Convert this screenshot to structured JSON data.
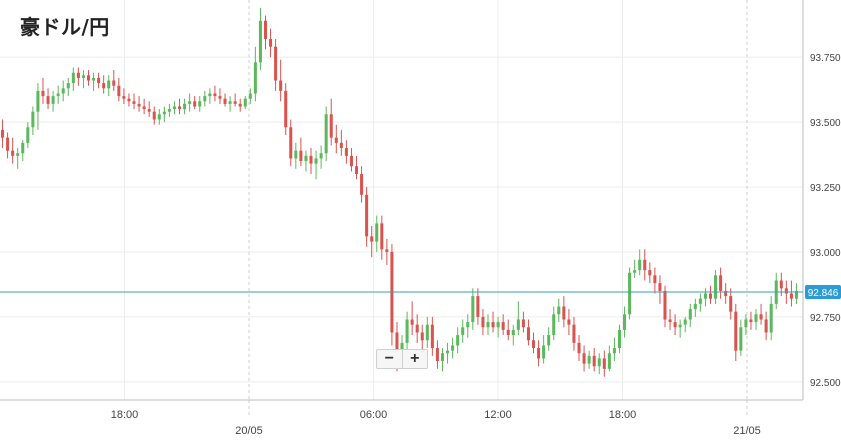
{
  "title": "豪ドル/円",
  "zoom": {
    "out_label": "−",
    "in_label": "+"
  },
  "chart_data": {
    "type": "candlestick",
    "title": "豪ドル/円",
    "ylim": [
      92.43,
      93.97
    ],
    "y_ticks": [
      "93.750",
      "93.500",
      "93.250",
      "93.000",
      "92.750",
      "92.500"
    ],
    "x_ticks": [
      {
        "pos": 6,
        "label": "18:00"
      },
      {
        "pos": 12,
        "label": "20/05"
      },
      {
        "pos": 18,
        "label": "06:00"
      },
      {
        "pos": 24,
        "label": "12:00"
      },
      {
        "pos": 30,
        "label": "18:00"
      },
      {
        "pos": 36,
        "label": "21/05"
      }
    ],
    "x_range": [
      0,
      38.7
    ],
    "current_price": {
      "value": 92.846,
      "label": "92.846"
    },
    "up_color": "#5cb85c",
    "down_color": "#d9534f",
    "grid": true,
    "candles": [
      [
        93.47,
        93.51,
        93.4,
        93.44
      ],
      [
        93.44,
        93.46,
        93.36,
        93.39
      ],
      [
        93.39,
        93.44,
        93.34,
        93.37
      ],
      [
        93.37,
        93.4,
        93.32,
        93.38
      ],
      [
        93.38,
        93.43,
        93.35,
        93.42
      ],
      [
        93.42,
        93.5,
        93.4,
        93.48
      ],
      [
        93.48,
        93.56,
        93.45,
        93.54
      ],
      [
        93.54,
        93.65,
        93.47,
        93.62
      ],
      [
        93.62,
        93.67,
        93.57,
        93.6
      ],
      [
        93.6,
        93.63,
        93.55,
        93.57
      ],
      [
        93.57,
        93.62,
        93.54,
        93.6
      ],
      [
        93.6,
        93.64,
        93.57,
        93.61
      ],
      [
        93.61,
        93.66,
        93.58,
        93.63
      ],
      [
        93.63,
        93.67,
        93.6,
        93.65
      ],
      [
        93.65,
        93.71,
        93.62,
        93.69
      ],
      [
        93.69,
        93.71,
        93.64,
        93.67
      ],
      [
        93.67,
        93.7,
        93.63,
        93.68
      ],
      [
        93.68,
        93.7,
        93.64,
        93.66
      ],
      [
        93.66,
        93.69,
        93.62,
        93.67
      ],
      [
        93.67,
        93.69,
        93.63,
        93.65
      ],
      [
        93.65,
        93.68,
        93.61,
        93.63
      ],
      [
        93.63,
        93.68,
        93.6,
        93.66
      ],
      [
        93.66,
        93.7,
        93.62,
        93.64
      ],
      [
        93.64,
        93.67,
        93.58,
        93.6
      ],
      [
        93.6,
        93.63,
        93.57,
        93.59
      ],
      [
        93.59,
        93.61,
        93.56,
        93.58
      ],
      [
        93.58,
        93.61,
        93.55,
        93.57
      ],
      [
        93.57,
        93.6,
        93.54,
        93.56
      ],
      [
        93.56,
        93.59,
        93.53,
        93.55
      ],
      [
        93.55,
        93.58,
        93.52,
        93.54
      ],
      [
        93.54,
        93.56,
        93.49,
        93.51
      ],
      [
        93.51,
        93.55,
        93.49,
        93.53
      ],
      [
        93.53,
        93.56,
        93.5,
        93.54
      ],
      [
        93.54,
        93.57,
        93.52,
        93.55
      ],
      [
        93.55,
        93.58,
        93.53,
        93.56
      ],
      [
        93.56,
        93.59,
        93.53,
        93.55
      ],
      [
        93.55,
        93.59,
        93.53,
        93.57
      ],
      [
        93.57,
        93.61,
        93.54,
        93.58
      ],
      [
        93.58,
        93.6,
        93.55,
        93.56
      ],
      [
        93.56,
        93.6,
        93.54,
        93.58
      ],
      [
        93.58,
        93.62,
        93.56,
        93.6
      ],
      [
        93.6,
        93.63,
        93.57,
        93.61
      ],
      [
        93.61,
        93.64,
        93.58,
        93.6
      ],
      [
        93.6,
        93.63,
        93.57,
        93.59
      ],
      [
        93.59,
        93.61,
        93.56,
        93.57
      ],
      [
        93.57,
        93.6,
        93.54,
        93.58
      ],
      [
        93.58,
        93.61,
        93.56,
        93.57
      ],
      [
        93.57,
        93.59,
        93.54,
        93.56
      ],
      [
        93.56,
        93.6,
        93.55,
        93.59
      ],
      [
        93.59,
        93.63,
        93.57,
        93.61
      ],
      [
        93.61,
        93.79,
        93.58,
        93.73
      ],
      [
        93.73,
        93.94,
        93.7,
        93.89
      ],
      [
        93.89,
        93.91,
        93.78,
        93.82
      ],
      [
        93.82,
        93.86,
        93.75,
        93.79
      ],
      [
        93.79,
        93.82,
        93.62,
        93.66
      ],
      [
        93.66,
        93.74,
        93.58,
        93.62
      ],
      [
        93.62,
        93.65,
        93.45,
        93.48
      ],
      [
        93.48,
        93.51,
        93.33,
        93.36
      ],
      [
        93.36,
        93.42,
        93.32,
        93.39
      ],
      [
        93.39,
        93.44,
        93.33,
        93.35
      ],
      [
        93.35,
        93.39,
        93.31,
        93.37
      ],
      [
        93.37,
        93.4,
        93.3,
        93.34
      ],
      [
        93.34,
        93.39,
        93.28,
        93.36
      ],
      [
        93.36,
        93.41,
        93.32,
        93.38
      ],
      [
        93.38,
        93.56,
        93.35,
        93.53
      ],
      [
        93.53,
        93.59,
        93.41,
        93.44
      ],
      [
        93.44,
        93.49,
        93.38,
        93.42
      ],
      [
        93.42,
        93.47,
        93.37,
        93.4
      ],
      [
        93.4,
        93.43,
        93.34,
        93.37
      ],
      [
        93.37,
        93.4,
        93.31,
        93.33
      ],
      [
        93.33,
        93.37,
        93.28,
        93.3
      ],
      [
        93.3,
        93.33,
        93.19,
        93.22
      ],
      [
        93.22,
        93.25,
        93.02,
        93.06
      ],
      [
        93.06,
        93.1,
        92.98,
        93.04
      ],
      [
        93.04,
        93.14,
        93.0,
        93.11
      ],
      [
        93.11,
        93.14,
        92.97,
        93.01
      ],
      [
        93.01,
        93.05,
        92.95,
        93.0
      ],
      [
        93.0,
        93.03,
        92.64,
        92.69
      ],
      [
        92.69,
        92.73,
        92.54,
        92.59
      ],
      [
        92.59,
        92.68,
        92.56,
        92.65
      ],
      [
        92.65,
        92.77,
        92.62,
        92.74
      ],
      [
        92.74,
        92.81,
        92.68,
        92.72
      ],
      [
        92.72,
        92.76,
        92.65,
        92.69
      ],
      [
        92.69,
        92.72,
        92.62,
        92.66
      ],
      [
        92.66,
        92.75,
        92.63,
        92.72
      ],
      [
        92.72,
        92.75,
        92.6,
        92.63
      ],
      [
        92.63,
        92.66,
        92.55,
        92.58
      ],
      [
        92.58,
        92.63,
        92.54,
        92.61
      ],
      [
        92.61,
        92.65,
        92.57,
        92.62
      ],
      [
        92.62,
        92.67,
        92.59,
        92.64
      ],
      [
        92.64,
        92.71,
        92.61,
        92.68
      ],
      [
        92.68,
        92.74,
        92.65,
        92.71
      ],
      [
        92.71,
        92.76,
        92.67,
        92.73
      ],
      [
        92.73,
        92.86,
        92.7,
        92.83
      ],
      [
        92.83,
        92.86,
        92.72,
        92.75
      ],
      [
        92.75,
        92.78,
        92.68,
        92.71
      ],
      [
        92.71,
        92.76,
        92.68,
        92.73
      ],
      [
        92.73,
        92.77,
        92.69,
        92.71
      ],
      [
        92.71,
        92.75,
        92.67,
        92.73
      ],
      [
        92.73,
        92.76,
        92.68,
        92.7
      ],
      [
        92.7,
        92.74,
        92.66,
        92.68
      ],
      [
        92.68,
        92.72,
        92.64,
        92.7
      ],
      [
        92.7,
        92.81,
        92.68,
        92.74
      ],
      [
        92.74,
        92.77,
        92.69,
        92.71
      ],
      [
        92.71,
        92.74,
        92.64,
        92.66
      ],
      [
        92.66,
        92.69,
        92.61,
        92.63
      ],
      [
        92.63,
        92.66,
        92.56,
        92.59
      ],
      [
        92.59,
        92.68,
        92.57,
        92.64
      ],
      [
        92.64,
        92.71,
        92.62,
        92.68
      ],
      [
        92.68,
        92.79,
        92.66,
        92.76
      ],
      [
        92.76,
        92.82,
        92.73,
        92.79
      ],
      [
        92.79,
        92.83,
        92.71,
        92.74
      ],
      [
        92.74,
        92.78,
        92.68,
        92.72
      ],
      [
        92.72,
        92.75,
        92.62,
        92.65
      ],
      [
        92.65,
        92.68,
        92.58,
        92.61
      ],
      [
        92.61,
        92.64,
        92.54,
        92.57
      ],
      [
        92.57,
        92.62,
        92.55,
        92.6
      ],
      [
        92.6,
        92.63,
        92.54,
        92.56
      ],
      [
        92.56,
        92.61,
        92.53,
        92.59
      ],
      [
        92.59,
        92.62,
        92.52,
        92.55
      ],
      [
        92.55,
        92.64,
        92.54,
        92.61
      ],
      [
        92.61,
        92.67,
        92.58,
        92.63
      ],
      [
        92.63,
        92.72,
        92.61,
        92.7
      ],
      [
        92.7,
        92.79,
        92.67,
        92.76
      ],
      [
        92.76,
        92.94,
        92.74,
        92.92
      ],
      [
        92.92,
        92.97,
        92.9,
        92.93
      ],
      [
        92.93,
        93.01,
        92.91,
        92.97
      ],
      [
        92.97,
        93.01,
        92.89,
        92.93
      ],
      [
        92.93,
        92.96,
        92.88,
        92.91
      ],
      [
        92.91,
        92.94,
        92.84,
        92.88
      ],
      [
        92.88,
        92.91,
        92.8,
        92.85
      ],
      [
        92.85,
        92.87,
        92.71,
        92.74
      ],
      [
        92.74,
        92.78,
        92.7,
        92.73
      ],
      [
        92.73,
        92.76,
        92.68,
        92.71
      ],
      [
        92.71,
        92.74,
        92.67,
        92.72
      ],
      [
        92.72,
        92.75,
        92.69,
        92.74
      ],
      [
        92.74,
        92.8,
        92.71,
        92.78
      ],
      [
        92.78,
        92.82,
        92.75,
        92.8
      ],
      [
        92.8,
        92.84,
        92.77,
        92.82
      ],
      [
        92.82,
        92.86,
        92.79,
        92.84
      ],
      [
        92.84,
        92.87,
        92.8,
        92.82
      ],
      [
        92.82,
        92.93,
        92.8,
        92.91
      ],
      [
        92.91,
        92.94,
        92.82,
        92.85
      ],
      [
        92.85,
        92.88,
        92.8,
        92.83
      ],
      [
        92.83,
        92.86,
        92.74,
        92.77
      ],
      [
        92.77,
        92.8,
        92.58,
        92.62
      ],
      [
        92.62,
        92.74,
        92.6,
        92.71
      ],
      [
        92.71,
        92.76,
        92.68,
        92.74
      ],
      [
        92.74,
        92.77,
        92.7,
        92.73
      ],
      [
        92.73,
        92.78,
        92.7,
        92.76
      ],
      [
        92.76,
        92.8,
        92.72,
        92.74
      ],
      [
        92.74,
        92.77,
        92.66,
        92.69
      ],
      [
        92.69,
        92.83,
        92.66,
        92.8
      ],
      [
        92.8,
        92.92,
        92.78,
        92.89
      ],
      [
        92.89,
        92.92,
        92.83,
        92.86
      ],
      [
        92.86,
        92.89,
        92.8,
        92.84
      ],
      [
        92.84,
        92.89,
        92.79,
        92.82
      ],
      [
        92.82,
        92.88,
        92.8,
        92.85
      ]
    ]
  }
}
